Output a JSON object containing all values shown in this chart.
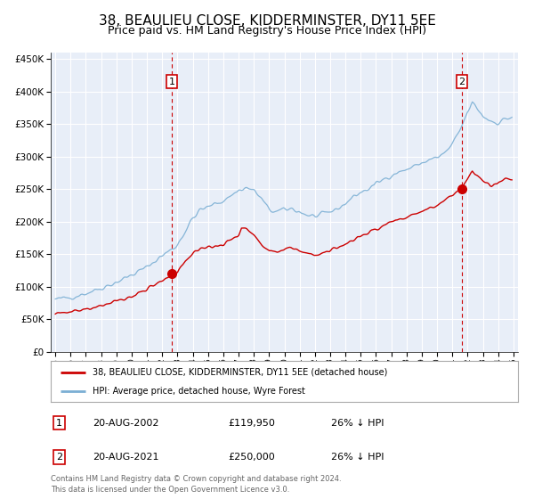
{
  "title": "38, BEAULIEU CLOSE, KIDDERMINSTER, DY11 5EE",
  "subtitle": "Price paid vs. HM Land Registry's House Price Index (HPI)",
  "background_color": "#ffffff",
  "plot_background": "#e8eef8",
  "grid_color": "#ffffff",
  "title_fontsize": 11,
  "subtitle_fontsize": 9,
  "sale1_date_num": 2002.634,
  "sale1_price": 119950,
  "sale2_date_num": 2021.634,
  "sale2_price": 250000,
  "price_color": "#cc0000",
  "hpi_color": "#7bafd4",
  "vline_color": "#cc0000",
  "legend_label1": "38, BEAULIEU CLOSE, KIDDERMINSTER, DY11 5EE (detached house)",
  "legend_label2": "HPI: Average price, detached house, Wyre Forest",
  "table_row1": [
    "1",
    "20-AUG-2002",
    "£119,950",
    "26% ↓ HPI"
  ],
  "table_row2": [
    "2",
    "20-AUG-2021",
    "£250,000",
    "26% ↓ HPI"
  ],
  "footer1": "Contains HM Land Registry data © Crown copyright and database right 2024.",
  "footer2": "This data is licensed under the Open Government Licence v3.0.",
  "ylim_max": 460000,
  "xlim_min": 1994.7,
  "xlim_max": 2025.3
}
